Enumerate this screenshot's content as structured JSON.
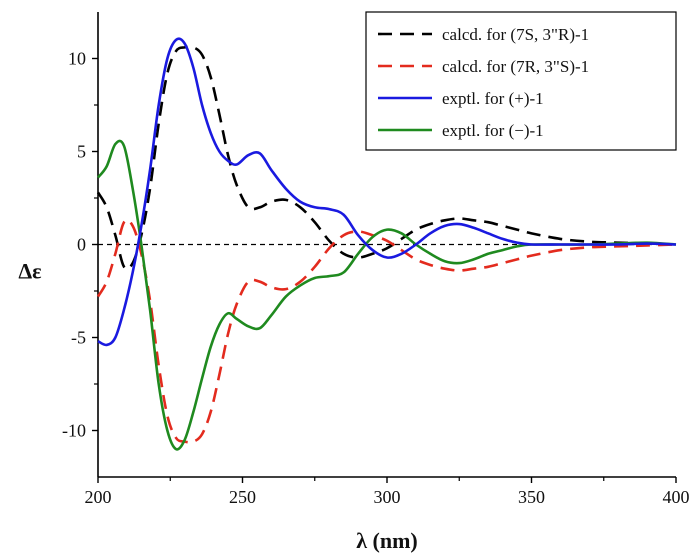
{
  "chart_data": {
    "type": "line",
    "title": "",
    "xlabel": "λ (nm)",
    "ylabel": "Δε",
    "xlim": [
      200,
      400
    ],
    "ylim": [
      -12.5,
      12.5
    ],
    "x_ticks": [
      200,
      250,
      300,
      350,
      400
    ],
    "y_ticks": [
      -10,
      -5,
      0,
      5,
      10
    ],
    "x_tick_labels": [
      "200",
      "250",
      "300",
      "350",
      "400"
    ],
    "y_tick_labels": [
      "-10",
      "-5",
      "0",
      "5",
      "10"
    ],
    "zero_line": "dashed",
    "grid": false,
    "legend_position": "top-right",
    "series": [
      {
        "name": "calcd. for (7S, 3\"R)-1",
        "color": "#000000",
        "dash": "dashed",
        "x": [
          200,
          203,
          206,
          209,
          212,
          215,
          218,
          221,
          224,
          227,
          230,
          233,
          236,
          239,
          242,
          245,
          248,
          252,
          256,
          260,
          265,
          270,
          275,
          280,
          285,
          290,
          295,
          300,
          305,
          310,
          315,
          320,
          325,
          330,
          335,
          340,
          345,
          350,
          360,
          370,
          380,
          390,
          400
        ],
        "y": [
          2.8,
          2.0,
          0.5,
          -1.2,
          -1.0,
          0.5,
          3.0,
          6.5,
          9.2,
          10.4,
          10.6,
          10.6,
          10.2,
          9.0,
          7.0,
          4.8,
          3.2,
          2.0,
          2.0,
          2.3,
          2.4,
          2.0,
          1.2,
          0.2,
          -0.5,
          -0.7,
          -0.5,
          -0.2,
          0.3,
          0.8,
          1.1,
          1.3,
          1.4,
          1.3,
          1.2,
          1.0,
          0.8,
          0.6,
          0.3,
          0.15,
          0.1,
          0.05,
          0.0
        ]
      },
      {
        "name": "calcd. for (7R, 3\"S)-1",
        "color": "#e32b1e",
        "dash": "dashed",
        "x": [
          200,
          203,
          206,
          209,
          212,
          215,
          218,
          221,
          224,
          227,
          230,
          233,
          236,
          239,
          242,
          245,
          248,
          252,
          256,
          260,
          265,
          270,
          275,
          280,
          285,
          290,
          295,
          300,
          305,
          310,
          315,
          320,
          325,
          330,
          335,
          340,
          345,
          350,
          360,
          370,
          380,
          390,
          400
        ],
        "y": [
          -2.8,
          -2.0,
          -0.5,
          1.2,
          1.0,
          -0.5,
          -3.0,
          -6.5,
          -9.2,
          -10.4,
          -10.6,
          -10.6,
          -10.2,
          -9.0,
          -7.0,
          -4.8,
          -3.2,
          -2.0,
          -2.0,
          -2.3,
          -2.4,
          -2.0,
          -1.2,
          -0.2,
          0.5,
          0.7,
          0.5,
          0.2,
          -0.3,
          -0.8,
          -1.1,
          -1.3,
          -1.4,
          -1.3,
          -1.2,
          -1.0,
          -0.8,
          -0.6,
          -0.3,
          -0.15,
          -0.1,
          -0.05,
          0.0
        ]
      },
      {
        "name": "exptl. for (+)-1",
        "color": "#1a1ae0",
        "dash": "solid",
        "x": [
          200,
          203,
          206,
          209,
          212,
          215,
          218,
          221,
          224,
          227,
          230,
          233,
          236,
          239,
          242,
          245,
          248,
          252,
          256,
          260,
          265,
          270,
          275,
          280,
          285,
          290,
          295,
          300,
          305,
          310,
          315,
          320,
          325,
          330,
          335,
          340,
          345,
          350,
          360,
          370,
          380,
          390,
          400
        ],
        "y": [
          -5.2,
          -5.4,
          -5.0,
          -3.5,
          -1.5,
          1.0,
          4.0,
          7.5,
          10.0,
          11.0,
          10.8,
          9.5,
          7.5,
          6.0,
          5.0,
          4.5,
          4.3,
          4.8,
          4.9,
          4.0,
          3.0,
          2.3,
          2.0,
          1.9,
          1.6,
          0.5,
          -0.3,
          -0.7,
          -0.5,
          0.0,
          0.6,
          1.0,
          1.1,
          0.9,
          0.6,
          0.3,
          0.1,
          0.0,
          0.0,
          0.0,
          0.0,
          0.05,
          0.0
        ]
      },
      {
        "name": "exptl. for (−)-1",
        "color": "#1f8a1f",
        "dash": "solid",
        "x": [
          200,
          203,
          206,
          209,
          212,
          215,
          218,
          221,
          224,
          227,
          230,
          233,
          236,
          239,
          242,
          245,
          248,
          252,
          256,
          260,
          265,
          270,
          275,
          280,
          285,
          290,
          295,
          300,
          305,
          310,
          315,
          320,
          325,
          330,
          335,
          340,
          345,
          350,
          360,
          370,
          380,
          390,
          400
        ],
        "y": [
          3.6,
          4.2,
          5.4,
          5.3,
          3.0,
          0.0,
          -3.5,
          -7.5,
          -10.0,
          -11.0,
          -10.5,
          -9.0,
          -7.2,
          -5.5,
          -4.3,
          -3.7,
          -4.0,
          -4.4,
          -4.5,
          -3.8,
          -2.8,
          -2.2,
          -1.8,
          -1.7,
          -1.5,
          -0.5,
          0.4,
          0.8,
          0.6,
          0.0,
          -0.5,
          -0.9,
          -1.0,
          -0.8,
          -0.5,
          -0.3,
          -0.1,
          0.0,
          0.0,
          0.0,
          0.05,
          0.1,
          0.0
        ]
      }
    ]
  }
}
